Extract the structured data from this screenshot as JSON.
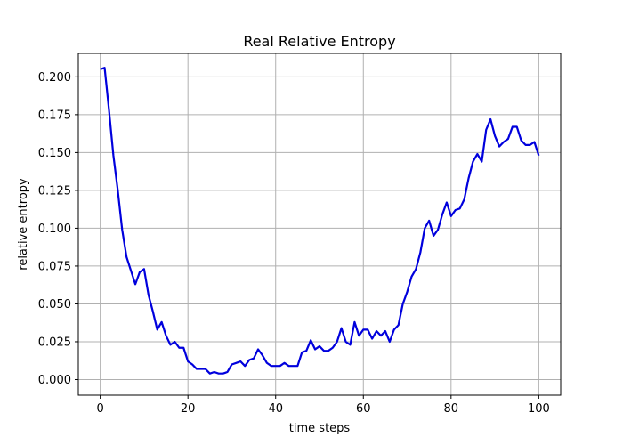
{
  "chart_data": {
    "type": "line",
    "title": "Real Relative Entropy",
    "xlabel": "time steps",
    "ylabel": "relative entropy",
    "xlim": [
      -5,
      105
    ],
    "ylim": [
      -0.0103,
      0.2155
    ],
    "x_ticks": [
      0,
      20,
      40,
      60,
      80,
      100
    ],
    "x_tick_labels": [
      "0",
      "20",
      "40",
      "60",
      "80",
      "100"
    ],
    "y_ticks": [
      0.0,
      0.025,
      0.05,
      0.075,
      0.1,
      0.125,
      0.15,
      0.175,
      0.2
    ],
    "y_tick_labels": [
      "0.000",
      "0.025",
      "0.050",
      "0.075",
      "0.100",
      "0.125",
      "0.150",
      "0.175",
      "0.200"
    ],
    "grid": true,
    "series": [
      {
        "color": "#0000dd",
        "x": [
          0,
          1,
          2,
          3,
          4,
          5,
          6,
          7,
          8,
          9,
          10,
          11,
          12,
          13,
          14,
          15,
          16,
          17,
          18,
          19,
          20,
          21,
          22,
          23,
          24,
          25,
          26,
          27,
          28,
          29,
          30,
          31,
          32,
          33,
          34,
          35,
          36,
          37,
          38,
          39,
          40,
          41,
          42,
          43,
          44,
          45,
          46,
          47,
          48,
          49,
          50,
          51,
          52,
          53,
          54,
          55,
          56,
          57,
          58,
          59,
          60,
          61,
          62,
          63,
          64,
          65,
          66,
          67,
          68,
          69,
          70,
          71,
          72,
          73,
          74,
          75,
          76,
          77,
          78,
          79,
          80,
          81,
          82,
          83,
          84,
          85,
          86,
          87,
          88,
          89,
          90,
          91,
          92,
          93,
          94,
          95,
          96,
          97,
          98,
          99,
          100
        ],
        "values": [
          0.205,
          0.206,
          0.178,
          0.148,
          0.125,
          0.099,
          0.081,
          0.072,
          0.063,
          0.071,
          0.073,
          0.056,
          0.045,
          0.033,
          0.038,
          0.029,
          0.023,
          0.025,
          0.021,
          0.021,
          0.012,
          0.01,
          0.007,
          0.007,
          0.007,
          0.004,
          0.005,
          0.004,
          0.004,
          0.005,
          0.01,
          0.011,
          0.012,
          0.009,
          0.013,
          0.014,
          0.02,
          0.016,
          0.011,
          0.009,
          0.009,
          0.009,
          0.011,
          0.009,
          0.009,
          0.009,
          0.018,
          0.019,
          0.026,
          0.02,
          0.022,
          0.019,
          0.019,
          0.021,
          0.025,
          0.034,
          0.025,
          0.023,
          0.038,
          0.029,
          0.033,
          0.033,
          0.027,
          0.032,
          0.029,
          0.032,
          0.025,
          0.033,
          0.036,
          0.05,
          0.058,
          0.068,
          0.073,
          0.084,
          0.1,
          0.105,
          0.095,
          0.099,
          0.109,
          0.117,
          0.108,
          0.112,
          0.113,
          0.119,
          0.133,
          0.144,
          0.149,
          0.144,
          0.165,
          0.172,
          0.161,
          0.154,
          0.157,
          0.159,
          0.167,
          0.167,
          0.158,
          0.155,
          0.155,
          0.157,
          0.148
        ]
      }
    ]
  }
}
